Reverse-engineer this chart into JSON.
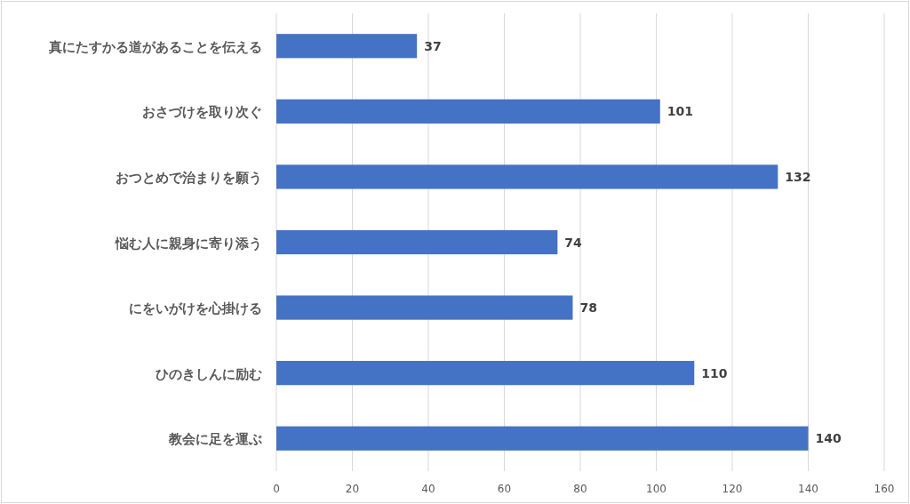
{
  "chart_data": {
    "type": "bar",
    "orientation": "horizontal",
    "categories": [
      "真にたすかる道があることを伝える",
      "おさづけを取り次ぐ",
      "おつとめで治まりを願う",
      "悩む人に親身に寄り添う",
      "にをいがけを心掛ける",
      "ひのきしんに励む",
      "教会に足を運ぶ"
    ],
    "values": [
      37,
      101,
      132,
      74,
      78,
      110,
      140
    ],
    "color": "#4472c4",
    "xlim": [
      0,
      160
    ],
    "xticks": [
      0,
      20,
      40,
      60,
      80,
      100,
      120,
      140,
      160
    ],
    "grid": "x",
    "data_labels": true
  }
}
